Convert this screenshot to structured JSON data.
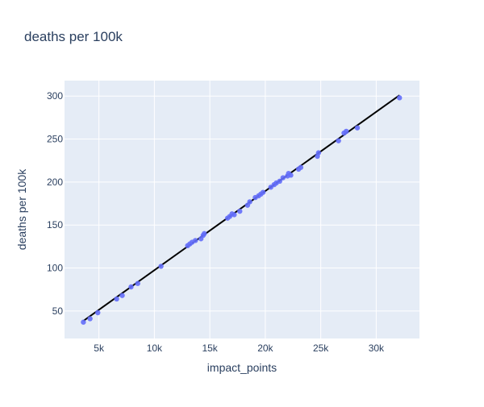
{
  "chart_data": {
    "type": "scatter",
    "title": "deaths per 100k",
    "xlabel": "impact_points",
    "ylabel": "deaths per 100k",
    "xlim": [
      1900,
      33900
    ],
    "ylim": [
      18,
      318
    ],
    "x_ticks": [
      5000,
      10000,
      15000,
      20000,
      25000,
      30000
    ],
    "x_tick_labels": [
      "5k",
      "10k",
      "15k",
      "20k",
      "25k",
      "30k"
    ],
    "y_ticks": [
      50,
      100,
      150,
      200,
      250,
      300
    ],
    "y_tick_labels": [
      "50",
      "100",
      "150",
      "200",
      "250",
      "300"
    ],
    "grid": true,
    "legend": "none",
    "colors": {
      "plot_background": "#e5ecf6",
      "grid": "#ffffff",
      "points": "#636efa",
      "trendline": "#000000",
      "text": "#2a3f5f"
    },
    "series": [
      {
        "mode": "markers",
        "x": [
          3600,
          4200,
          4900,
          6600,
          7100,
          7900,
          8500,
          10600,
          13000,
          13200,
          13400,
          13700,
          14200,
          14400,
          14500,
          16600,
          16800,
          17000,
          17200,
          17700,
          18400,
          18600,
          19100,
          19400,
          19600,
          19800,
          20500,
          20800,
          21000,
          21300,
          21600,
          22000,
          22100,
          22300,
          23000,
          23200,
          24700,
          24800,
          26600,
          27100,
          27300,
          28300,
          32100
        ],
        "y": [
          37,
          41,
          48,
          64,
          68,
          78,
          82,
          102,
          126,
          128,
          130,
          132,
          134,
          138,
          140,
          158,
          160,
          163,
          162,
          166,
          173,
          177,
          182,
          184,
          186,
          188,
          194,
          197,
          199,
          201,
          205,
          207,
          210,
          208,
          215,
          217,
          230,
          234,
          248,
          257,
          259,
          263,
          298
        ]
      },
      {
        "mode": "lines",
        "x": [
          3600,
          32100
        ],
        "y": [
          38.5,
          301
        ]
      }
    ]
  }
}
